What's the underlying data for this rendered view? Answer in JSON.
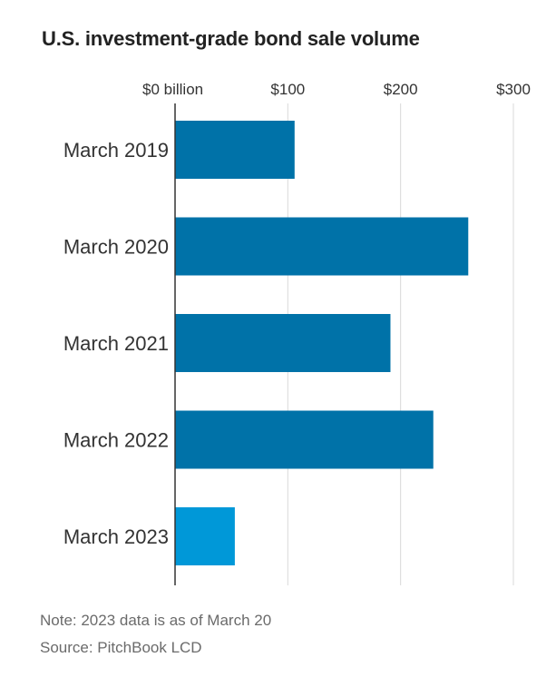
{
  "title": "U.S. investment-grade bond sale volume",
  "note": "Note: 2023 data is as of March 20",
  "source": "Source: PitchBook LCD",
  "colors": {
    "bar": "#0072a8",
    "highlight": "#0098d8",
    "grid": "#d9d9d9",
    "axis": "#333333"
  },
  "chart_data": {
    "type": "bar",
    "orientation": "horizontal",
    "categories": [
      "March 2019",
      "March 2020",
      "March 2021",
      "March 2022",
      "March 2023"
    ],
    "values": [
      106,
      260,
      191,
      229,
      53
    ],
    "highlight_index": 4,
    "xlim": [
      0,
      300
    ],
    "xticks": [
      0,
      100,
      200,
      300
    ],
    "xtick_labels": [
      "$0 billion",
      "$100",
      "$200",
      "$300"
    ],
    "grid": true,
    "xlabel": "",
    "ylabel": ""
  }
}
